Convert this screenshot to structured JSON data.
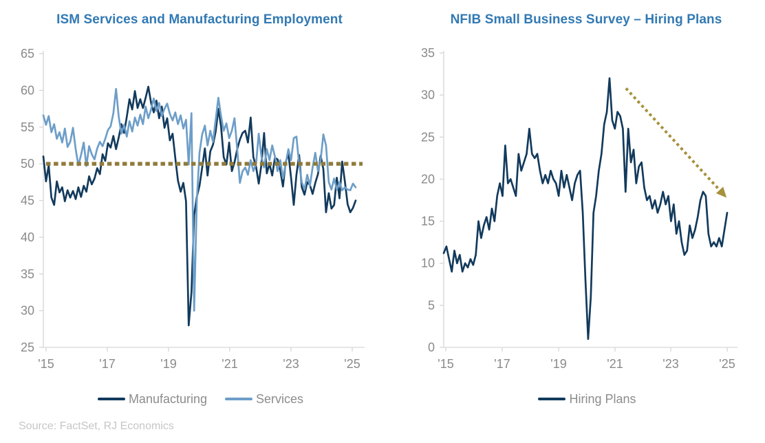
{
  "page": {
    "background": "#FFFFFF",
    "source_note": "Source: FactSet, RJ Economics",
    "title_color": "#3279B3",
    "axis_color": "#D6D6D6",
    "tick_label_color": "#8A8A8A"
  },
  "chart_data": [
    {
      "id": "ism-employment",
      "type": "line",
      "title": "ISM Services and Manufacturing Employment",
      "xlabel": "",
      "ylabel": "",
      "ylim": [
        25,
        65
      ],
      "yticks": [
        "65",
        "60",
        "55",
        "50",
        "45",
        "40",
        "35",
        "30",
        "25"
      ],
      "xticks": [
        "'15",
        "'17",
        "'19",
        "'21",
        "'23",
        "'25"
      ],
      "x_range": "2015 to early 2025, monthly",
      "grid": false,
      "legend_position": "bottom",
      "reference_line": {
        "value": 50,
        "style": "dotted",
        "color": "#8F7B3B"
      },
      "series": [
        {
          "name": "Manufacturing",
          "color": "#123A5C",
          "values": [
            51.0,
            47.6,
            49.8,
            45.4,
            44.4,
            47.6,
            46.1,
            46.8,
            44.9,
            46.4,
            45.4,
            46.3,
            45.2,
            46.8,
            45.5,
            47.0,
            46.2,
            48.3,
            47.2,
            48.0,
            49.4,
            48.6,
            51.3,
            50.4,
            52.8,
            52.2,
            53.8,
            52.0,
            53.6,
            55.4,
            54.2,
            56.4,
            58.8,
            57.4,
            59.9,
            57.6,
            58.8,
            57.6,
            59.0,
            60.5,
            58.3,
            57.0,
            58.6,
            56.2,
            57.8,
            54.9,
            56.2,
            53.2,
            54.1,
            50.8,
            47.7,
            46.2,
            47.4,
            44.9,
            28.0,
            32.5,
            43.0,
            45.5,
            47.0,
            49.5,
            52.1,
            48.4,
            51.7,
            52.6,
            54.4,
            57.5,
            55.1,
            50.9,
            49.9,
            52.9,
            49.0,
            50.2,
            52.0,
            53.3,
            54.2,
            54.5,
            52.9,
            56.3,
            50.9,
            49.6,
            47.3,
            49.9,
            54.2,
            48.7,
            50.0,
            48.4,
            50.8,
            50.6,
            49.1,
            46.9,
            50.2,
            51.4,
            48.1,
            44.4,
            48.5,
            51.2,
            46.8,
            45.8,
            47.5,
            47.1,
            45.9,
            47.4,
            48.6,
            51.1,
            49.3,
            43.4,
            46.0,
            43.9,
            44.4,
            48.1,
            45.3,
            50.3,
            47.6,
            44.5,
            43.4,
            44.0,
            45.0
          ]
        },
        {
          "name": "Services",
          "color": "#6D9EC8",
          "values": [
            56.6,
            55.3,
            56.5,
            54.3,
            55.4,
            53.4,
            54.3,
            52.9,
            54.8,
            52.3,
            53.0,
            54.9,
            52.0,
            49.8,
            51.2,
            52.9,
            49.7,
            52.4,
            51.3,
            50.6,
            52.1,
            53.0,
            52.4,
            53.4,
            54.6,
            55.1,
            56.9,
            60.2,
            56.4,
            54.1,
            55.3,
            53.7,
            55.8,
            54.4,
            56.3,
            55.2,
            56.7,
            55.4,
            57.8,
            56.2,
            57.4,
            58.9,
            57.2,
            58.3,
            56.5,
            57.5,
            58.2,
            56.8,
            55.9,
            57.0,
            55.4,
            56.6,
            54.8,
            56.0,
            49.9,
            56.9,
            30.0,
            45.0,
            51.5,
            54.0,
            55.2,
            52.5,
            54.5,
            53.0,
            56.0,
            59.0,
            56.5,
            54.5,
            55.5,
            53.5,
            54.5,
            56.2,
            52.0,
            47.4,
            49.0,
            49.5,
            48.5,
            50.5,
            49.0,
            50.0,
            54.1,
            51.0,
            49.5,
            52.0,
            50.5,
            52.5,
            51.0,
            49.0,
            50.5,
            48.0,
            50.0,
            52.0,
            50.5,
            53.5,
            53.7,
            50.0,
            47.5,
            46.5,
            48.5,
            47.0,
            49.5,
            51.5,
            49.0,
            50.5,
            54.0,
            52.5,
            47.5,
            46.5,
            48.0,
            46.5,
            47.5,
            46.4,
            46.8,
            46.5,
            46.4,
            47.3,
            46.8
          ]
        }
      ]
    },
    {
      "id": "nfib-hiring-plans",
      "type": "line",
      "title": "NFIB Small Business Survey – Hiring Plans",
      "xlabel": "",
      "ylabel": "",
      "ylim": [
        0,
        35
      ],
      "yticks": [
        "35",
        "30",
        "25",
        "20",
        "15",
        "10",
        "5",
        "0"
      ],
      "xticks": [
        "'15",
        "'17",
        "'19",
        "'21",
        "'23",
        "'25"
      ],
      "x_range": "2015 to early 2025, monthly",
      "grid": false,
      "legend_position": "bottom",
      "annotation_arrow": {
        "description": "dotted downtrend arrow",
        "x1_frac": 0.643,
        "value_from": 30.8,
        "x2_frac": 0.998,
        "value_to": 17.8,
        "color": "#A6913C"
      },
      "series": [
        {
          "name": "Hiring Plans",
          "color": "#123A5C",
          "values": [
            11.2,
            12.0,
            10.5,
            9.0,
            11.5,
            10.0,
            11.0,
            9.0,
            10.0,
            9.5,
            10.5,
            9.8,
            11.0,
            15.0,
            13.0,
            14.5,
            15.5,
            14.0,
            16.5,
            15.0,
            18.0,
            19.5,
            18.0,
            24.0,
            19.5,
            20.0,
            19.0,
            18.0,
            23.0,
            21.0,
            22.0,
            23.0,
            26.0,
            23.0,
            22.5,
            23.0,
            21.0,
            19.5,
            20.5,
            19.5,
            21.0,
            20.0,
            19.5,
            18.0,
            21.0,
            19.0,
            20.5,
            19.0,
            17.5,
            19.5,
            20.5,
            21.0,
            16.0,
            8.0,
            1.0,
            6.0,
            16.0,
            18.0,
            21.0,
            23.0,
            26.5,
            28.0,
            32.0,
            27.0,
            26.0,
            28.0,
            27.5,
            26.0,
            18.5,
            26.0,
            22.0,
            23.5,
            19.5,
            21.5,
            22.0,
            19.0,
            17.5,
            18.0,
            16.5,
            17.5,
            16.0,
            17.0,
            18.5,
            17.0,
            18.0,
            15.0,
            17.0,
            13.5,
            15.0,
            12.5,
            11.0,
            11.5,
            14.5,
            13.0,
            14.0,
            15.5,
            17.5,
            18.5,
            18.0,
            13.5,
            12.0,
            12.5,
            12.0,
            13.0,
            12.0,
            14.0,
            16.0
          ]
        }
      ]
    }
  ]
}
